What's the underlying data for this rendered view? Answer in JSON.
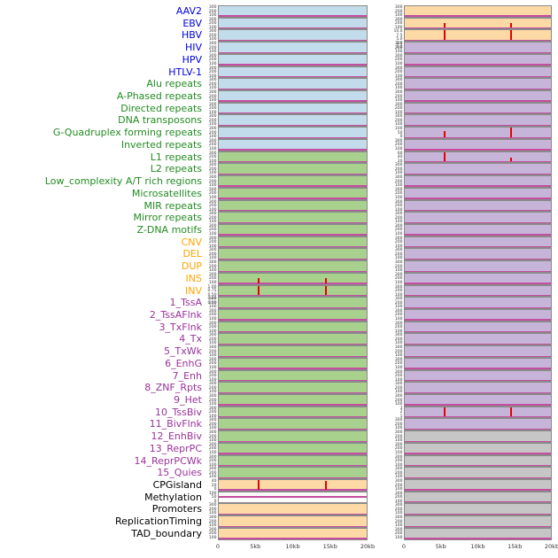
{
  "chart_data": {
    "type": "heatmap",
    "title": "",
    "description_axes": {
      "x_range_kb": [
        0,
        20
      ],
      "x_tick_labels": [
        "0",
        "5kb",
        "10kb",
        "15kb",
        "20kb"
      ]
    },
    "colors": {
      "label_groups": {
        "virus": "#0000dd",
        "repeat": "#228B22",
        "sv": "#FFA500",
        "chromatin": "#993399",
        "other": "#000000"
      },
      "track_bg": {
        "blue": "#c3dcec",
        "green": "#a9d18e",
        "orange": "#fdd9a5",
        "purple": "#c7b5d9",
        "gray": "#c6c6c6",
        "white": "#fbfbfb"
      },
      "spike": "#e60000",
      "baseline": "#c44ea0",
      "border": "#8a8a8a"
    },
    "defaults": {
      "yticks": [
        "300",
        "200",
        "100"
      ]
    },
    "axis": {
      "ticks": [
        {
          "label": "0",
          "pos": 0
        },
        {
          "label": "5kb",
          "pos": 0.25
        },
        {
          "label": "10kb",
          "pos": 0.5
        },
        {
          "label": "15kb",
          "pos": 0.75
        },
        {
          "label": "20kb",
          "pos": 1
        }
      ]
    },
    "rows": [
      {
        "label": "AAV2",
        "group": "virus",
        "left": {
          "bg": "blue"
        },
        "right": {
          "bg": "orange"
        }
      },
      {
        "label": "EBV",
        "group": "virus",
        "left": {
          "bg": "blue"
        },
        "right": {
          "bg": "orange",
          "spikes": [
            {
              "x": 0.265,
              "h": 0.5
            },
            {
              "x": 0.72,
              "h": 0.5
            }
          ]
        }
      },
      {
        "label": "HBV",
        "group": "virus",
        "left": {
          "bg": "blue"
        },
        "right": {
          "bg": "orange",
          "yticks": [
            "10.0",
            "7.5",
            "5.0",
            "2.5",
            "0.0"
          ],
          "spikes": [
            {
              "x": 0.265,
              "h": 0.95
            },
            {
              "x": 0.72,
              "h": 0.95
            }
          ]
        }
      },
      {
        "label": "HIV",
        "group": "virus",
        "left": {
          "bg": "blue"
        },
        "right": {
          "bg": "purple"
        }
      },
      {
        "label": "HPV",
        "group": "virus",
        "left": {
          "bg": "blue"
        },
        "right": {
          "bg": "purple"
        }
      },
      {
        "label": "HTLV-1",
        "group": "virus",
        "left": {
          "bg": "blue"
        },
        "right": {
          "bg": "purple"
        }
      },
      {
        "label": "Alu repeats",
        "group": "repeat",
        "left": {
          "bg": "blue"
        },
        "right": {
          "bg": "purple"
        }
      },
      {
        "label": "A-Phased repeats",
        "group": "repeat",
        "left": {
          "bg": "blue"
        },
        "right": {
          "bg": "purple"
        }
      },
      {
        "label": "Directed repeats",
        "group": "repeat",
        "left": {
          "bg": "blue"
        },
        "right": {
          "bg": "purple"
        }
      },
      {
        "label": "DNA transposons",
        "group": "repeat",
        "left": {
          "bg": "blue"
        },
        "right": {
          "bg": "purple"
        }
      },
      {
        "label": "G-Quadruplex forming repeats",
        "group": "repeat",
        "left": {
          "bg": "blue"
        },
        "right": {
          "bg": "purple",
          "yticks": [
            "100",
            "50",
            "0"
          ],
          "spikes": [
            {
              "x": 0.265,
              "h": 0.55
            },
            {
              "x": 0.72,
              "h": 0.95
            }
          ]
        }
      },
      {
        "label": "Inverted repeats",
        "group": "repeat",
        "left": {
          "bg": "blue"
        },
        "right": {
          "bg": "purple"
        }
      },
      {
        "label": "L1 repeats",
        "group": "repeat",
        "left": {
          "bg": "green"
        },
        "right": {
          "bg": "purple",
          "yticks": [
            "60",
            "40",
            "20"
          ],
          "spikes": [
            {
              "x": 0.265,
              "h": 0.95
            },
            {
              "x": 0.72,
              "h": 0.4
            }
          ]
        }
      },
      {
        "label": "L2 repeats",
        "group": "repeat",
        "left": {
          "bg": "green"
        },
        "right": {
          "bg": "purple"
        }
      },
      {
        "label": "Low_complexity A/T rich regions",
        "group": "repeat",
        "left": {
          "bg": "green"
        },
        "right": {
          "bg": "purple"
        }
      },
      {
        "label": "Microsatellites",
        "group": "repeat",
        "left": {
          "bg": "green"
        },
        "right": {
          "bg": "purple"
        }
      },
      {
        "label": "MIR repeats",
        "group": "repeat",
        "left": {
          "bg": "green"
        },
        "right": {
          "bg": "purple"
        }
      },
      {
        "label": "Mirror repeats",
        "group": "repeat",
        "left": {
          "bg": "green"
        },
        "right": {
          "bg": "purple"
        }
      },
      {
        "label": "Z-DNA motifs",
        "group": "repeat",
        "left": {
          "bg": "green"
        },
        "right": {
          "bg": "purple"
        }
      },
      {
        "label": "CNV",
        "group": "sv",
        "left": {
          "bg": "green"
        },
        "right": {
          "bg": "purple"
        }
      },
      {
        "label": "DEL",
        "group": "sv",
        "left": {
          "bg": "green"
        },
        "right": {
          "bg": "purple"
        }
      },
      {
        "label": "DUP",
        "group": "sv",
        "left": {
          "bg": "green"
        },
        "right": {
          "bg": "purple"
        }
      },
      {
        "label": "INS",
        "group": "sv",
        "left": {
          "bg": "green",
          "spikes": [
            {
              "x": 0.265,
              "h": 0.5
            },
            {
              "x": 0.72,
              "h": 0.45
            }
          ]
        },
        "right": {
          "bg": "purple"
        }
      },
      {
        "label": "INV",
        "group": "sv",
        "left": {
          "bg": "green",
          "yticks": [
            "1.00",
            "0.75",
            "0.50",
            "0.25",
            "0.00"
          ],
          "spikes": [
            {
              "x": 0.265,
              "h": 0.95
            },
            {
              "x": 0.72,
              "h": 0.9
            }
          ]
        },
        "right": {
          "bg": "purple"
        }
      },
      {
        "label": "1_TssA",
        "group": "chromatin",
        "left": {
          "bg": "green"
        },
        "right": {
          "bg": "purple"
        }
      },
      {
        "label": "2_TssAFlnk",
        "group": "chromatin",
        "left": {
          "bg": "green"
        },
        "right": {
          "bg": "purple"
        }
      },
      {
        "label": "3_TxFlnk",
        "group": "chromatin",
        "left": {
          "bg": "green"
        },
        "right": {
          "bg": "purple"
        }
      },
      {
        "label": "4_Tx",
        "group": "chromatin",
        "left": {
          "bg": "green"
        },
        "right": {
          "bg": "purple"
        }
      },
      {
        "label": "5_TxWk",
        "group": "chromatin",
        "left": {
          "bg": "green"
        },
        "right": {
          "bg": "purple"
        }
      },
      {
        "label": "6_EnhG",
        "group": "chromatin",
        "left": {
          "bg": "green"
        },
        "right": {
          "bg": "purple"
        }
      },
      {
        "label": "7_Enh",
        "group": "chromatin",
        "left": {
          "bg": "green"
        },
        "right": {
          "bg": "purple"
        }
      },
      {
        "label": "8_ZNF_Rpts",
        "group": "chromatin",
        "left": {
          "bg": "green"
        },
        "right": {
          "bg": "purple"
        }
      },
      {
        "label": "9_Het",
        "group": "chromatin",
        "left": {
          "bg": "green"
        },
        "right": {
          "bg": "purple"
        }
      },
      {
        "label": "10_TssBiv",
        "group": "chromatin",
        "left": {
          "bg": "green"
        },
        "right": {
          "bg": "purple",
          "yticks": [
            "3",
            "2",
            "1"
          ],
          "spikes": [
            {
              "x": 0.265,
              "h": 0.9
            },
            {
              "x": 0.72,
              "h": 0.85
            }
          ]
        }
      },
      {
        "label": "11_BivFlnk",
        "group": "chromatin",
        "left": {
          "bg": "green"
        },
        "right": {
          "bg": "purple"
        }
      },
      {
        "label": "12_EnhBiv",
        "group": "chromatin",
        "left": {
          "bg": "green"
        },
        "right": {
          "bg": "gray"
        }
      },
      {
        "label": "13_ReprPC",
        "group": "chromatin",
        "left": {
          "bg": "green"
        },
        "right": {
          "bg": "gray"
        }
      },
      {
        "label": "14_ReprPCWk",
        "group": "chromatin",
        "left": {
          "bg": "green"
        },
        "right": {
          "bg": "gray"
        }
      },
      {
        "label": "15_Quies",
        "group": "chromatin",
        "left": {
          "bg": "green"
        },
        "right": {
          "bg": "gray"
        }
      },
      {
        "label": "CPGisland",
        "group": "other",
        "left": {
          "bg": "orange",
          "yticks": [
            "40",
            "20",
            "0"
          ],
          "spikes": [
            {
              "x": 0.265,
              "h": 0.9
            },
            {
              "x": 0.72,
              "h": 0.8
            }
          ]
        },
        "right": {
          "bg": "gray"
        }
      },
      {
        "label": "Methylation",
        "group": "other",
        "left": {
          "bg": "white",
          "yticks": [
            "100",
            "50",
            "0"
          ],
          "line_y": 0.5
        },
        "right": {
          "bg": "gray"
        }
      },
      {
        "label": "Promoters",
        "group": "other",
        "left": {
          "bg": "orange"
        },
        "right": {
          "bg": "gray"
        }
      },
      {
        "label": "ReplicationTiming",
        "group": "other",
        "left": {
          "bg": "orange"
        },
        "right": {
          "bg": "gray"
        }
      },
      {
        "label": "TAD_boundary",
        "group": "other",
        "left": {
          "bg": "orange"
        },
        "right": {
          "bg": "gray"
        }
      }
    ]
  }
}
